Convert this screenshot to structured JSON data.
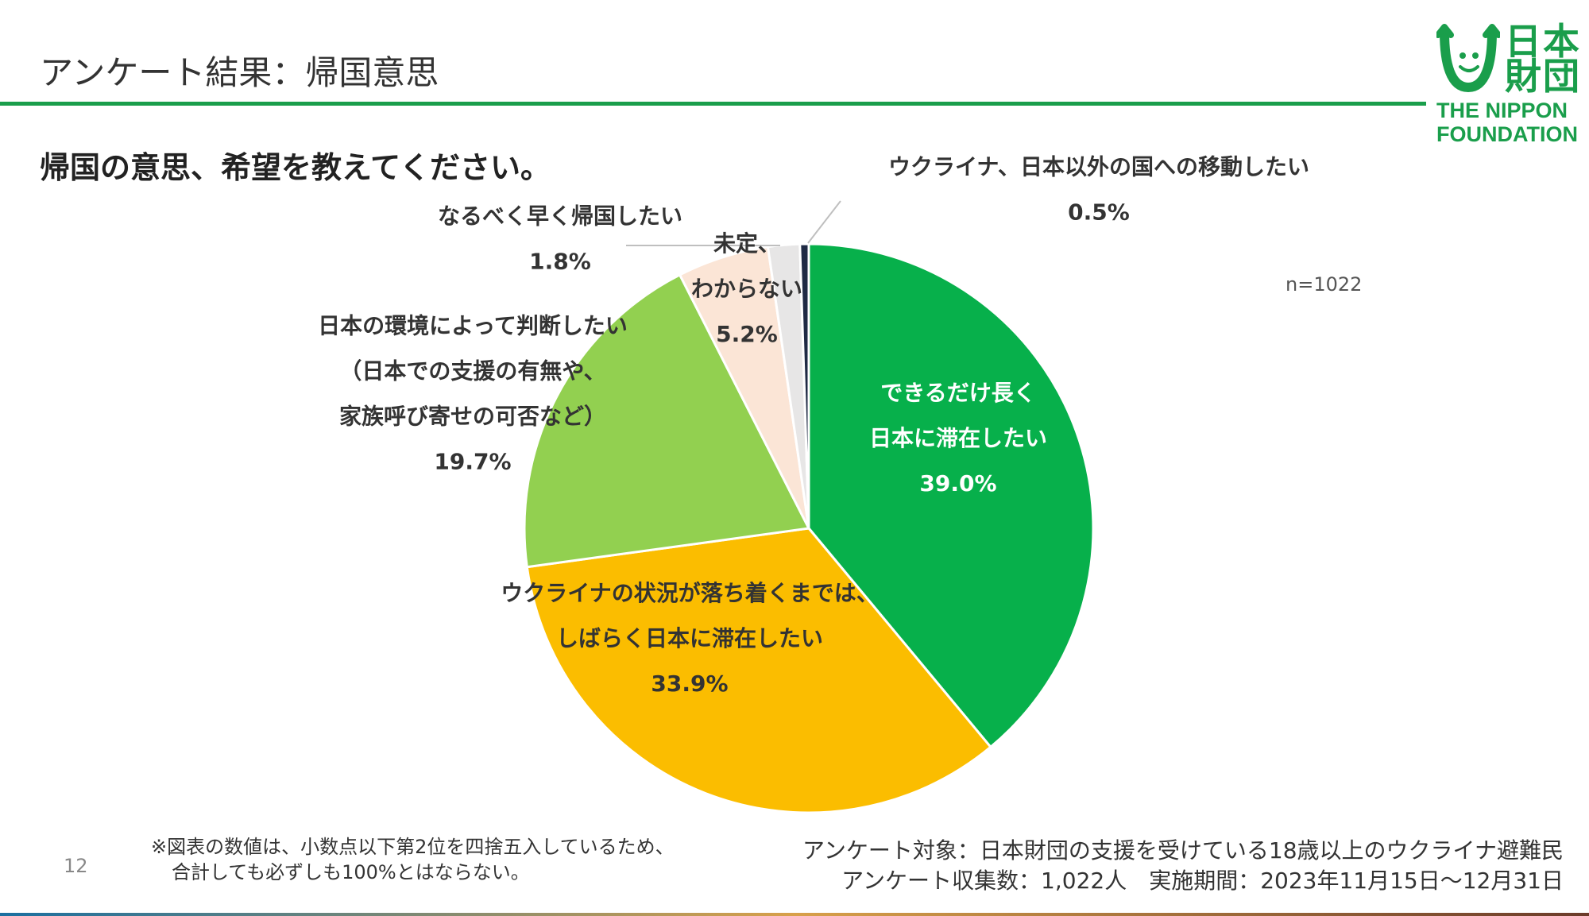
{
  "header": {
    "title": "アンケート結果：帰国意思",
    "logo": {
      "kanji_line1": "日本",
      "kanji_line2": "財団",
      "en_line1": "THE NIPPON",
      "en_line2": "FOUNDATION",
      "icon": "smiling-face-logo-icon"
    }
  },
  "question": "帰国の意思、希望を教えてください。",
  "sample_size": "n=1022",
  "colors": {
    "brand": "#1a9e4b"
  },
  "chart_data": {
    "type": "pie",
    "unit": "%",
    "slices": [
      {
        "label_lines": [
          "できるだけ長く",
          "日本に滞在したい"
        ],
        "value": 39.0,
        "value_label": "39.0%",
        "color": "#07b04b",
        "label_color": "#ffffff"
      },
      {
        "label_lines": [
          "ウクライナの状況が落ち着くまでは、",
          "しばらく日本に滞在したい"
        ],
        "value": 33.9,
        "value_label": "33.9%",
        "color": "#fbbd00",
        "label_color": "#333333"
      },
      {
        "label_lines": [
          "日本の環境によって判断したい",
          "（日本での支援の有無や、",
          "家族呼び寄せの可否など）"
        ],
        "value": 19.7,
        "value_label": "19.7%",
        "color": "#92d050",
        "label_color": "#333333"
      },
      {
        "label_lines": [
          "未定、",
          "わからない"
        ],
        "value": 5.2,
        "value_label": "5.2%",
        "color": "#fbe5d6",
        "label_color": "#333333"
      },
      {
        "label_lines": [
          "なるべく早く帰国したい"
        ],
        "value": 1.8,
        "value_label": "1.8%",
        "color": "#e7e6e6",
        "label_color": "#333333"
      },
      {
        "label_lines": [
          "ウクライナ、日本以外の国への移動したい"
        ],
        "value": 0.5,
        "value_label": "0.5%",
        "color": "#1f2a44",
        "label_color": "#333333"
      }
    ]
  },
  "footer": {
    "note_line1": "※図表の数値は、小数点以下第2位を四捨五入しているため、",
    "note_line2": "合計しても必ずしも100%とはならない。",
    "page_number": "12",
    "survey_line1": "アンケート対象：日本財団の支援を受けている18歳以上のウクライナ避難民",
    "survey_line2": "アンケート収集数：1,022人　実施期間：2023年11月15日～12月31日"
  }
}
